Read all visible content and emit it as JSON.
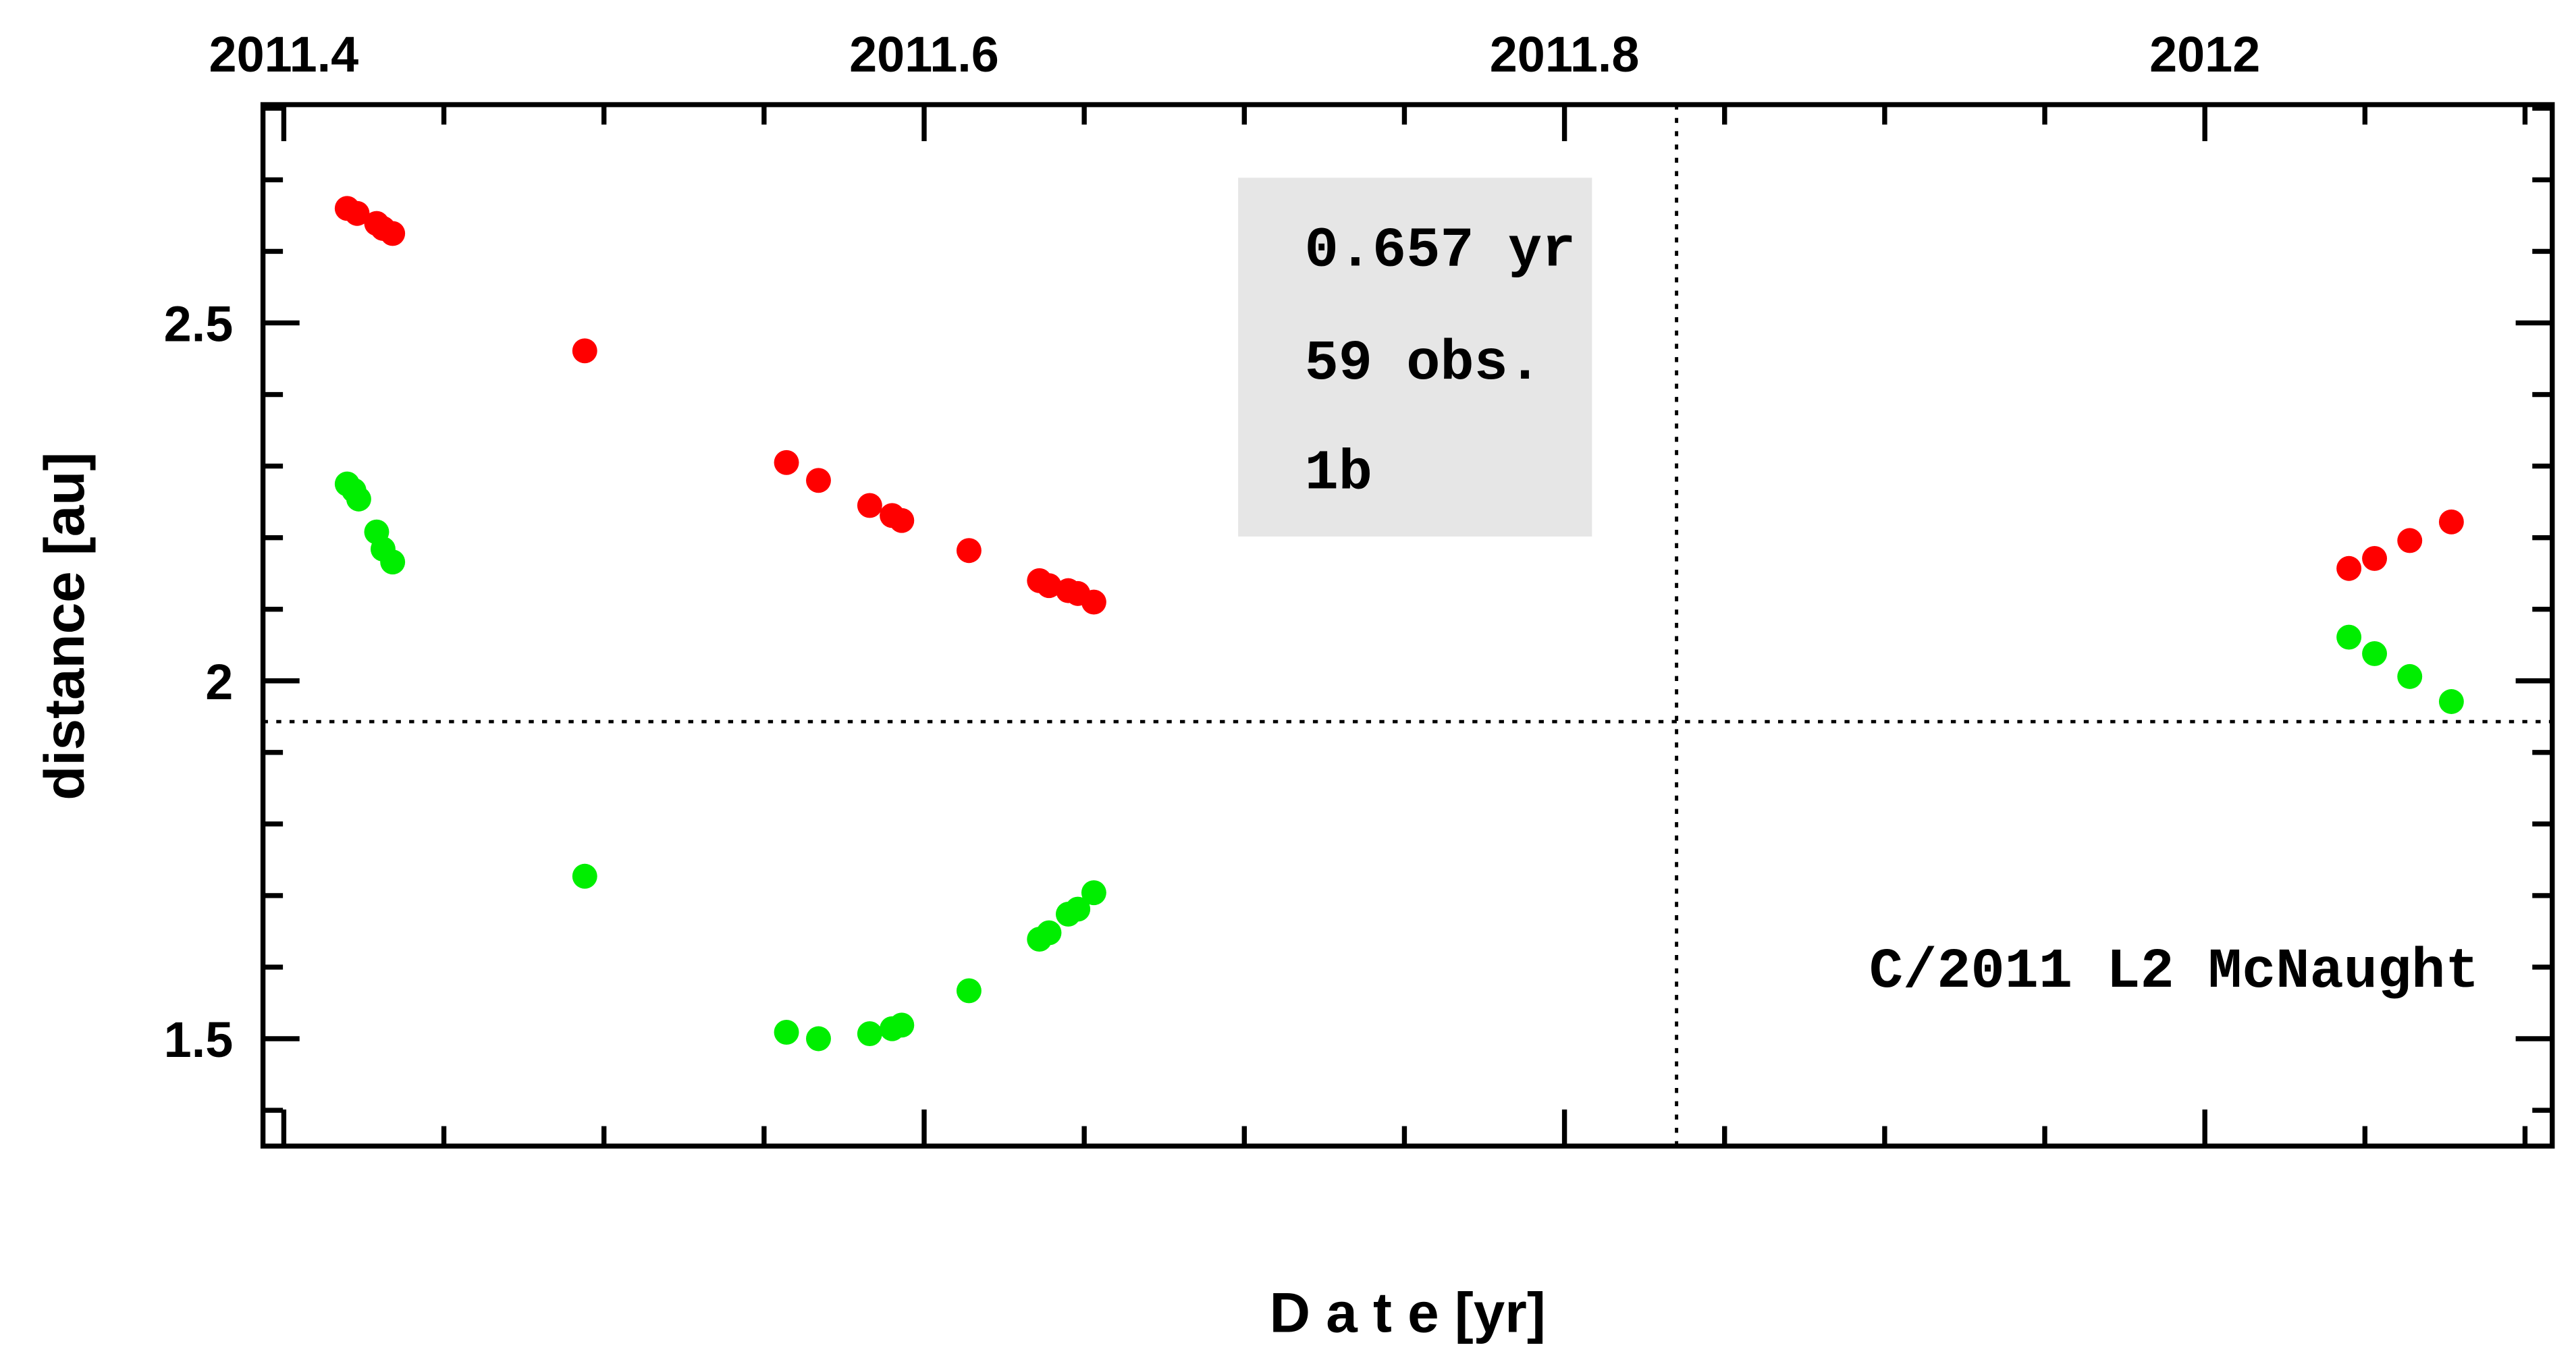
{
  "chart_data": {
    "type": "scatter",
    "title": "",
    "xlabel": "D a t e [yr]",
    "ylabel": "distance [au]",
    "xlim": [
      2011.3935,
      2012.1085
    ],
    "ylim": [
      1.35,
      2.805
    ],
    "x_ticks": [
      "2011.4",
      "2011.6",
      "2011.8",
      "2012"
    ],
    "x_tick_values": [
      2011.4,
      2011.6,
      2011.8,
      2012.0
    ],
    "x_minor_step": 0.05,
    "y_ticks": [
      "1.5",
      "2",
      "2.5"
    ],
    "y_tick_values": [
      1.5,
      2.0,
      2.5
    ],
    "y_minor_step": 0.1,
    "grid": false,
    "reference_lines": {
      "x": 2011.835,
      "y": 1.943
    },
    "annotation": "C/2011 L2 McNaught",
    "info_box": {
      "lines": [
        "0.657 yr",
        "59 obs.",
        "1b"
      ],
      "background": "#e6e6e6"
    },
    "series": [
      {
        "color": "#ff0000",
        "x": [
          2011.4198,
          2011.4229,
          2011.429,
          2011.431,
          2011.434,
          2011.494,
          2011.557,
          2011.567,
          2011.583,
          2011.59,
          2011.593,
          2011.614,
          2011.636,
          2011.639,
          2011.645,
          2011.648,
          2011.653,
          2012.045,
          2012.053,
          2012.064,
          2012.077
        ],
        "y": [
          2.66,
          2.653,
          2.639,
          2.632,
          2.625,
          2.461,
          2.305,
          2.28,
          2.245,
          2.231,
          2.224,
          2.182,
          2.14,
          2.133,
          2.126,
          2.122,
          2.11,
          2.157,
          2.171,
          2.196,
          2.222
        ]
      },
      {
        "color": "#00ee00",
        "x": [
          2011.4198,
          2011.4219,
          2011.4234,
          2011.429,
          2011.431,
          2011.434,
          2011.494,
          2011.557,
          2011.567,
          2011.583,
          2011.59,
          2011.593,
          2011.614,
          2011.636,
          2011.639,
          2011.645,
          2011.648,
          2011.653,
          2012.045,
          2012.053,
          2012.064,
          2012.077
        ],
        "y": [
          2.275,
          2.266,
          2.254,
          2.208,
          2.184,
          2.166,
          1.727,
          1.509,
          1.5,
          1.507,
          1.514,
          1.519,
          1.567,
          1.639,
          1.648,
          1.674,
          1.681,
          1.704,
          2.061,
          2.038,
          2.006,
          1.971
        ]
      }
    ]
  }
}
